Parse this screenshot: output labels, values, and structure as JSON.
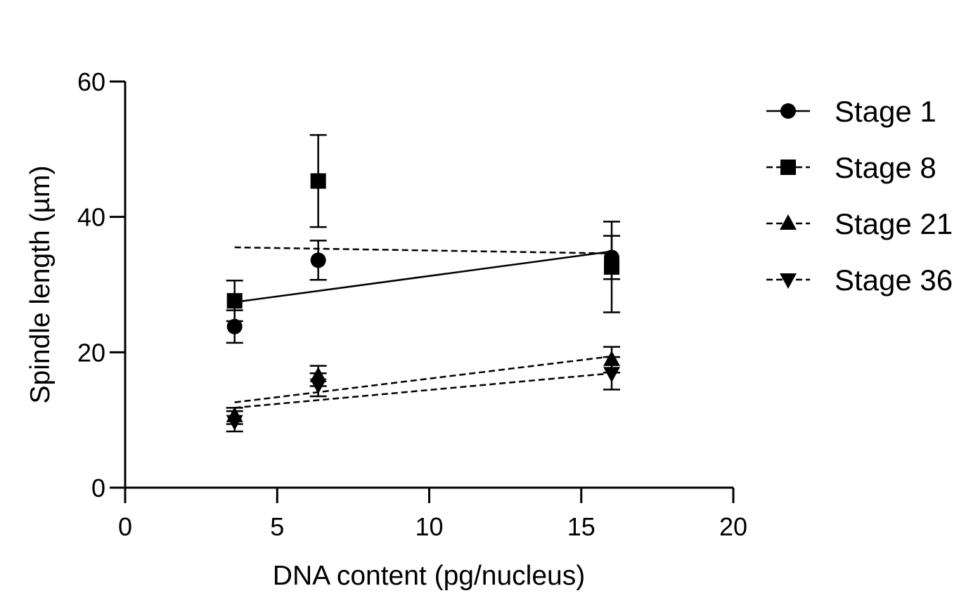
{
  "chart_data": {
    "type": "scatter",
    "xlabel": "DNA  content (pg/nucleus)",
    "ylabel": "Spindle length (µm)",
    "xlim": [
      0,
      20
    ],
    "ylim": [
      0,
      60
    ],
    "xticks": [
      0,
      5,
      10,
      15,
      20
    ],
    "yticks": [
      0,
      20,
      40,
      60
    ],
    "xtick_labels": [
      "0",
      "5",
      "10",
      "15",
      "20"
    ],
    "ytick_labels": [
      "0",
      "20",
      "40",
      "60"
    ],
    "grid": false,
    "legend_position": "right",
    "series": [
      {
        "name": "Stage 1",
        "marker": "circle",
        "line": "solid",
        "points": [
          {
            "x": 3.6,
            "y": 23.8,
            "err": 2.4
          },
          {
            "x": 6.35,
            "y": 33.6,
            "err": 2.9
          },
          {
            "x": 16.0,
            "y": 34.0,
            "err": 3.2
          }
        ],
        "fit": {
          "x": [
            3.6,
            16.0
          ],
          "y": [
            27.4,
            34.9
          ]
        }
      },
      {
        "name": "Stage 8",
        "marker": "square",
        "line": "dashed",
        "points": [
          {
            "x": 3.6,
            "y": 27.6,
            "err": 3.0
          },
          {
            "x": 6.35,
            "y": 45.3,
            "err": 6.8
          },
          {
            "x": 16.0,
            "y": 32.6,
            "err": 6.7
          }
        ],
        "fit": {
          "x": [
            3.6,
            16.0
          ],
          "y": [
            35.5,
            34.6
          ]
        }
      },
      {
        "name": "Stage 21",
        "marker": "triangle-up",
        "line": "dashed",
        "points": [
          {
            "x": 3.6,
            "y": 10.6,
            "err": 1.2
          },
          {
            "x": 6.35,
            "y": 16.5,
            "err": 1.5
          },
          {
            "x": 16.0,
            "y": 18.9,
            "err": 1.9
          }
        ],
        "fit": {
          "x": [
            3.6,
            16.0
          ],
          "y": [
            12.6,
            19.4
          ]
        }
      },
      {
        "name": "Stage 36",
        "marker": "triangle-down",
        "line": "dashed",
        "points": [
          {
            "x": 3.6,
            "y": 9.8,
            "err": 1.5
          },
          {
            "x": 6.35,
            "y": 15.2,
            "err": 1.7
          },
          {
            "x": 16.0,
            "y": 16.9,
            "err": 2.4
          }
        ],
        "fit": {
          "x": [
            3.6,
            16.0
          ],
          "y": [
            11.8,
            16.9
          ]
        }
      }
    ]
  }
}
